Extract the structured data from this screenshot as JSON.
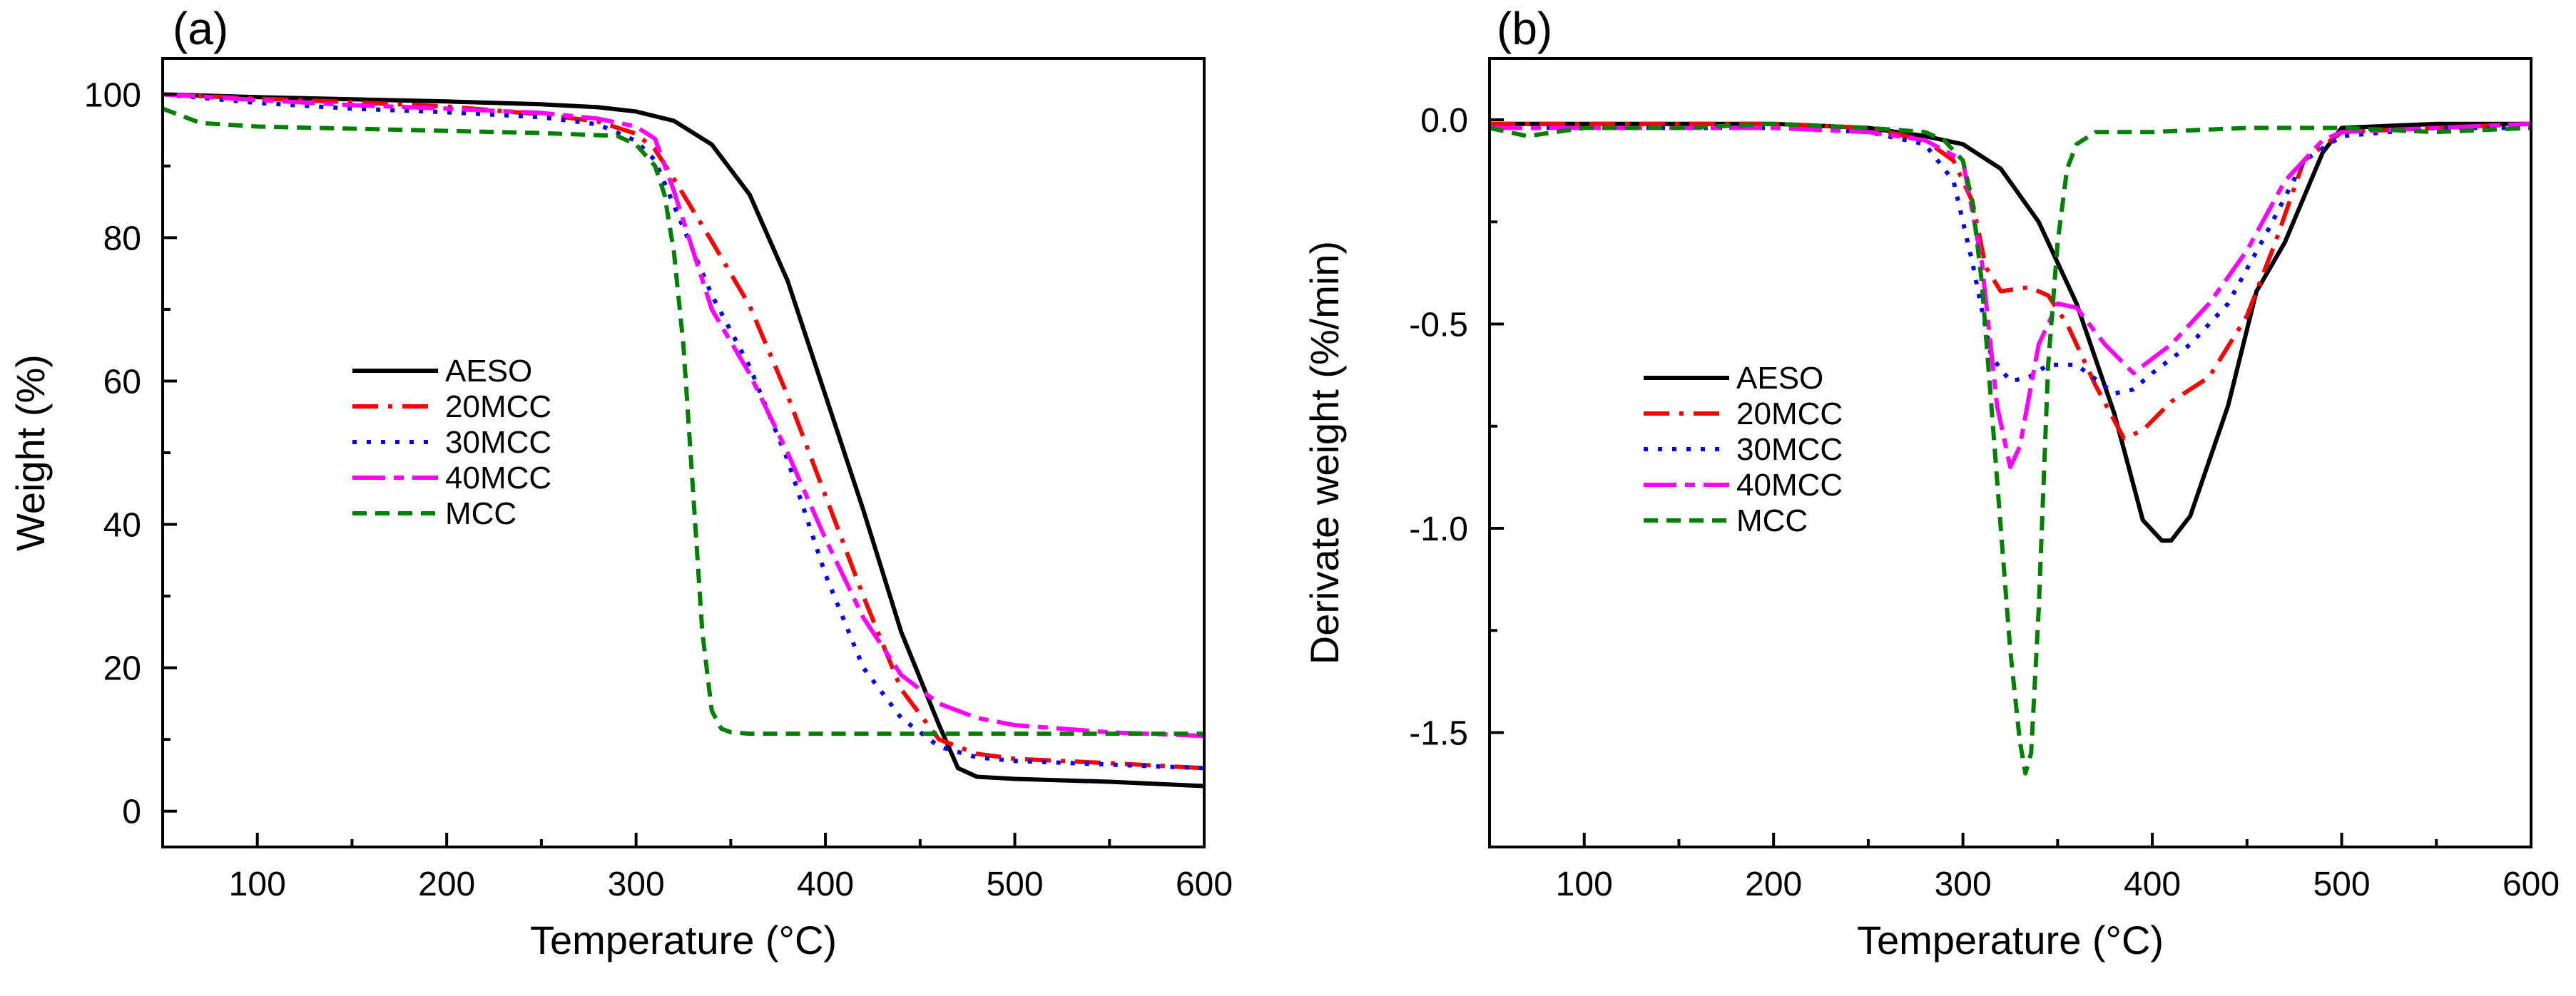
{
  "chart_data": [
    {
      "type": "line",
      "panel_label": "(a)",
      "xlabel": "Temperature (°C)",
      "ylabel": "Weight (%)",
      "xlim": [
        50,
        600
      ],
      "ylim": [
        -5,
        105
      ],
      "xticks": [
        100,
        200,
        300,
        400,
        500,
        600
      ],
      "yticks": [
        0,
        20,
        40,
        60,
        80,
        100
      ],
      "legend_position": "middle-left",
      "series": [
        {
          "name": "AESO",
          "color": "#000000",
          "dash": "solid",
          "x": [
            50,
            100,
            150,
            200,
            250,
            280,
            300,
            320,
            340,
            360,
            380,
            400,
            420,
            440,
            460,
            470,
            480,
            500,
            550,
            600
          ],
          "y": [
            100,
            99.6,
            99.3,
            99,
            98.6,
            98.2,
            97.6,
            96.3,
            93,
            86,
            74,
            58,
            42,
            25,
            12,
            6,
            4.8,
            4.5,
            4.1,
            3.5
          ]
        },
        {
          "name": "20MCC",
          "color": "#ff0000",
          "dash": "dashdot",
          "x": [
            50,
            100,
            150,
            200,
            250,
            280,
            300,
            310,
            320,
            340,
            360,
            380,
            400,
            420,
            440,
            460,
            480,
            500,
            550,
            600
          ],
          "y": [
            100,
            99.4,
            98.9,
            98.3,
            97.2,
            96.2,
            94.5,
            92.3,
            88.2,
            79.5,
            70.5,
            58,
            44,
            30,
            17,
            10,
            8,
            7.3,
            6.7,
            6
          ]
        },
        {
          "name": "30MCC",
          "color": "#0000ff",
          "dash": "dotted",
          "x": [
            50,
            100,
            150,
            200,
            250,
            280,
            300,
            310,
            320,
            340,
            360,
            380,
            400,
            420,
            440,
            460,
            480,
            500,
            550,
            600
          ],
          "y": [
            100,
            98.8,
            98,
            97.5,
            96.8,
            95.8,
            93.5,
            90.8,
            84.5,
            72,
            62,
            49,
            33,
            20,
            13,
            9,
            7.5,
            7,
            6.5,
            6
          ]
        },
        {
          "name": "40MCC",
          "color": "#ff00ff",
          "dash": "longdash",
          "x": [
            50,
            100,
            150,
            200,
            250,
            280,
            300,
            310,
            320,
            340,
            360,
            380,
            400,
            420,
            440,
            460,
            480,
            500,
            550,
            600
          ],
          "y": [
            100,
            99.2,
            98.5,
            98,
            97.4,
            96.6,
            95.5,
            93.8,
            86.5,
            70,
            61,
            50,
            38,
            27,
            19,
            15,
            13,
            12,
            11,
            10.5
          ]
        },
        {
          "name": "MCC",
          "color": "#008000",
          "dash": "dashed",
          "x": [
            50,
            70,
            100,
            150,
            200,
            250,
            290,
            300,
            310,
            315,
            320,
            325,
            330,
            335,
            340,
            345,
            350,
            360,
            380,
            400,
            450,
            500,
            600
          ],
          "y": [
            98,
            96,
            95.5,
            95.2,
            94.9,
            94.6,
            94.2,
            93,
            90,
            86,
            78,
            65,
            45,
            25,
            14,
            11.5,
            11,
            10.8,
            10.8,
            10.8,
            10.8,
            10.8,
            10.8
          ]
        }
      ]
    },
    {
      "type": "line",
      "panel_label": "(b)",
      "xlabel": "Temperature (°C)",
      "ylabel": "Derivate weight (%/min)",
      "xlim": [
        50,
        600
      ],
      "ylim": [
        -1.78,
        0.15
      ],
      "xticks": [
        100,
        200,
        300,
        400,
        500,
        600
      ],
      "yticks": [
        0.0,
        -0.5,
        -1.0,
        -1.5
      ],
      "ytick_labels": [
        "0.0",
        "-0.5",
        "-1.0",
        "-1.5"
      ],
      "legend_position": "middle-left",
      "series": [
        {
          "name": "AESO",
          "color": "#000000",
          "dash": "solid",
          "x": [
            50,
            100,
            150,
            200,
            250,
            280,
            300,
            320,
            340,
            360,
            380,
            395,
            405,
            410,
            420,
            440,
            455,
            470,
            490,
            500,
            550,
            600
          ],
          "y": [
            -0.01,
            -0.01,
            -0.01,
            -0.01,
            -0.02,
            -0.04,
            -0.06,
            -0.12,
            -0.25,
            -0.45,
            -0.72,
            -0.98,
            -1.03,
            -1.03,
            -0.97,
            -0.7,
            -0.42,
            -0.3,
            -0.08,
            -0.02,
            -0.01,
            -0.01
          ]
        },
        {
          "name": "20MCC",
          "color": "#ff0000",
          "dash": "dashdot",
          "x": [
            50,
            100,
            150,
            200,
            250,
            280,
            295,
            305,
            312,
            320,
            335,
            345,
            355,
            370,
            385,
            395,
            410,
            430,
            450,
            465,
            480,
            500,
            550,
            600
          ],
          "y": [
            -0.01,
            -0.01,
            -0.01,
            -0.01,
            -0.02,
            -0.05,
            -0.1,
            -0.2,
            -0.36,
            -0.42,
            -0.41,
            -0.43,
            -0.5,
            -0.65,
            -0.78,
            -0.76,
            -0.69,
            -0.63,
            -0.48,
            -0.3,
            -0.1,
            -0.03,
            -0.02,
            -0.01
          ]
        },
        {
          "name": "30MCC",
          "color": "#0000ff",
          "dash": "dotted",
          "x": [
            50,
            100,
            150,
            200,
            250,
            280,
            295,
            305,
            315,
            325,
            335,
            345,
            360,
            380,
            390,
            400,
            420,
            440,
            460,
            480,
            500,
            550,
            600
          ],
          "y": [
            -0.02,
            -0.02,
            -0.02,
            -0.02,
            -0.03,
            -0.06,
            -0.15,
            -0.35,
            -0.58,
            -0.64,
            -0.63,
            -0.6,
            -0.6,
            -0.67,
            -0.66,
            -0.62,
            -0.55,
            -0.45,
            -0.28,
            -0.1,
            -0.04,
            -0.02,
            -0.02
          ]
        },
        {
          "name": "40MCC",
          "color": "#ff00ff",
          "dash": "longdash",
          "x": [
            50,
            100,
            150,
            200,
            250,
            280,
            300,
            310,
            318,
            325,
            330,
            340,
            350,
            360,
            375,
            390,
            410,
            430,
            450,
            470,
            490,
            500,
            550,
            600
          ],
          "y": [
            -0.02,
            -0.02,
            -0.02,
            -0.02,
            -0.03,
            -0.05,
            -0.1,
            -0.35,
            -0.7,
            -0.85,
            -0.8,
            -0.55,
            -0.45,
            -0.46,
            -0.55,
            -0.62,
            -0.55,
            -0.45,
            -0.32,
            -0.15,
            -0.05,
            -0.03,
            -0.02,
            -0.01
          ]
        },
        {
          "name": "MCC",
          "color": "#008000",
          "dash": "dashed",
          "x": [
            50,
            70,
            100,
            150,
            200,
            250,
            280,
            290,
            300,
            305,
            310,
            315,
            320,
            325,
            330,
            333,
            336,
            340,
            345,
            350,
            355,
            360,
            370,
            400,
            450,
            500,
            550,
            600
          ],
          "y": [
            -0.02,
            -0.04,
            -0.02,
            -0.02,
            -0.01,
            -0.02,
            -0.03,
            -0.05,
            -0.1,
            -0.2,
            -0.4,
            -0.7,
            -1.0,
            -1.3,
            -1.52,
            -1.6,
            -1.55,
            -1.2,
            -0.6,
            -0.3,
            -0.12,
            -0.06,
            -0.03,
            -0.03,
            -0.02,
            -0.02,
            -0.03,
            -0.02
          ]
        }
      ]
    }
  ]
}
